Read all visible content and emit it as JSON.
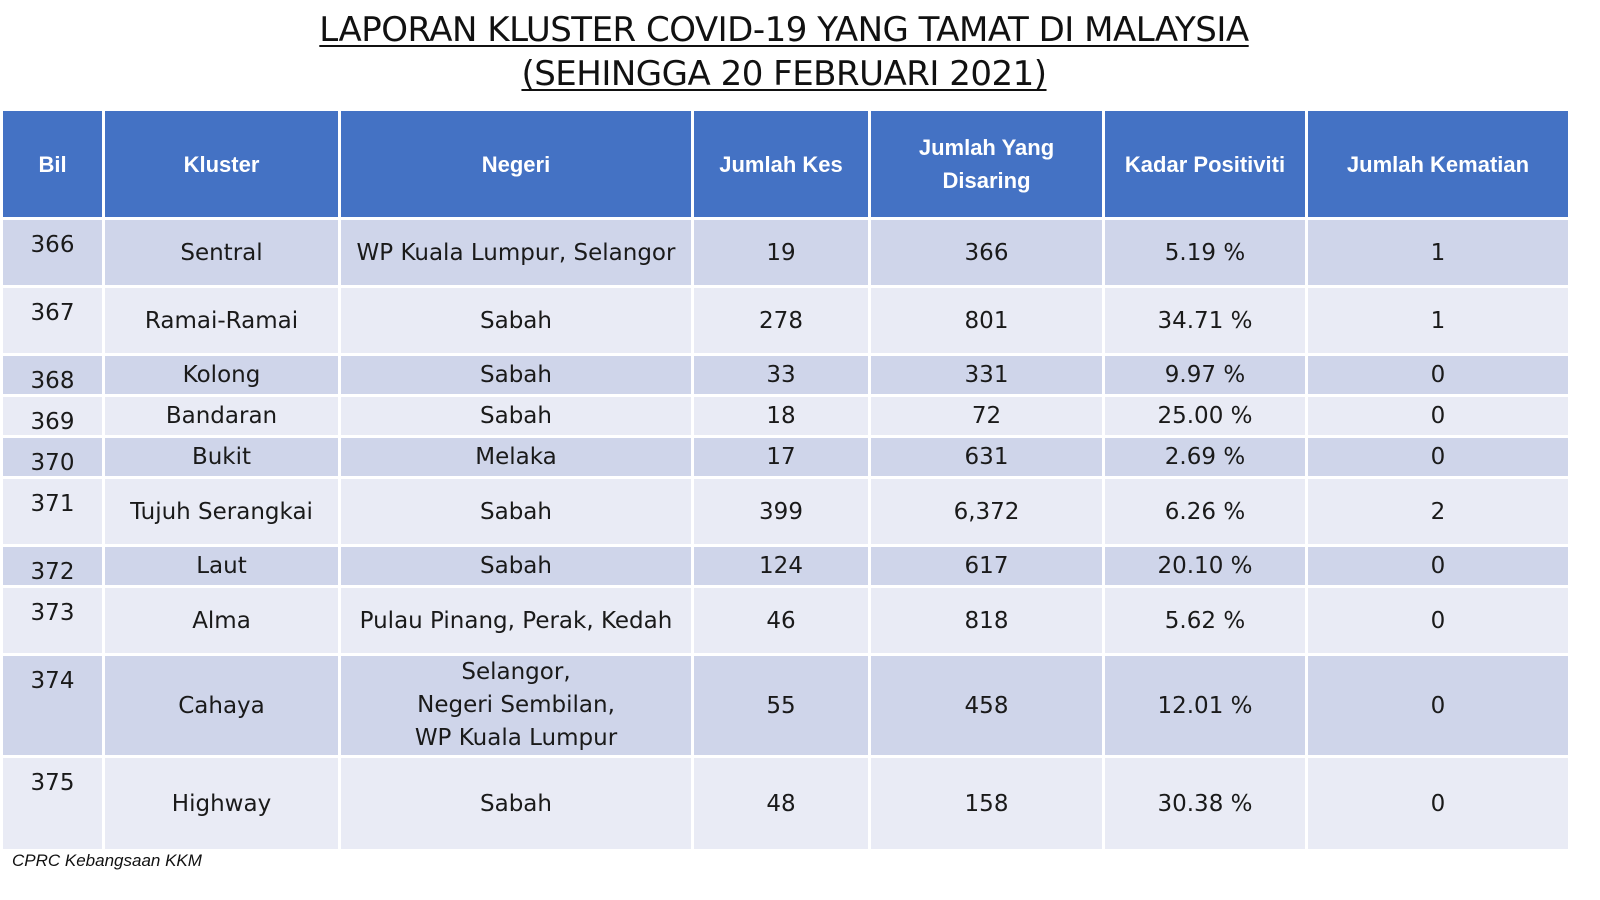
{
  "title": {
    "line1": "LAPORAN KLUSTER COVID-19 YANG TAMAT DI MALAYSIA",
    "line2": "(SEHINGGA 20 FEBRUARI 2021)"
  },
  "table": {
    "headers": {
      "bil": "Bil",
      "kluster": "Kluster",
      "negeri": "Negeri",
      "jumlah_kes": "Jumlah Kes",
      "jumlah_disaring_1": "Jumlah Yang",
      "jumlah_disaring_2": "Disaring",
      "kadar_positiviti": "Kadar Positiviti",
      "jumlah_kematian": "Jumlah Kematian"
    },
    "rows": [
      {
        "bil": "366",
        "kluster": "Sentral",
        "negeri": [
          "WP Kuala Lumpur, Selangor"
        ],
        "kes": "19",
        "disaring": "366",
        "positiviti": "5.19 %",
        "kematian": "1"
      },
      {
        "bil": "367",
        "kluster": "Ramai-Ramai",
        "negeri": [
          "Sabah"
        ],
        "kes": "278",
        "disaring": "801",
        "positiviti": "34.71 %",
        "kematian": "1"
      },
      {
        "bil": "368",
        "kluster": "Kolong",
        "negeri": [
          "Sabah"
        ],
        "kes": "33",
        "disaring": "331",
        "positiviti": "9.97 %",
        "kematian": "0"
      },
      {
        "bil": "369",
        "kluster": "Bandaran",
        "negeri": [
          "Sabah"
        ],
        "kes": "18",
        "disaring": "72",
        "positiviti": "25.00 %",
        "kematian": "0"
      },
      {
        "bil": "370",
        "kluster": "Bukit",
        "negeri": [
          "Melaka"
        ],
        "kes": "17",
        "disaring": "631",
        "positiviti": "2.69 %",
        "kematian": "0"
      },
      {
        "bil": "371",
        "kluster": "Tujuh Serangkai",
        "negeri": [
          "Sabah"
        ],
        "kes": "399",
        "disaring": "6,372",
        "positiviti": "6.26 %",
        "kematian": "2"
      },
      {
        "bil": "372",
        "kluster": "Laut",
        "negeri": [
          "Sabah"
        ],
        "kes": "124",
        "disaring": "617",
        "positiviti": "20.10 %",
        "kematian": "0"
      },
      {
        "bil": "373",
        "kluster": "Alma",
        "negeri": [
          "Pulau Pinang, Perak, Kedah"
        ],
        "kes": "46",
        "disaring": "818",
        "positiviti": "5.62  %",
        "kematian": "0"
      },
      {
        "bil": "374",
        "kluster": "Cahaya",
        "negeri": [
          "Selangor,",
          "Negeri Sembilan,",
          "WP Kuala Lumpur"
        ],
        "kes": "55",
        "disaring": "458",
        "positiviti": "12.01 %",
        "kematian": "0"
      },
      {
        "bil": "375",
        "kluster": "Highway",
        "negeri": [
          "Sabah"
        ],
        "kes": "48",
        "disaring": "158",
        "positiviti": "30.38 %",
        "kematian": "0"
      }
    ]
  },
  "footer": "CPRC Kebangsaan KKM",
  "colors": {
    "header_bg": "#4472c4",
    "row_odd_bg": "#cfd5ea",
    "row_even_bg": "#e9ebf5"
  }
}
